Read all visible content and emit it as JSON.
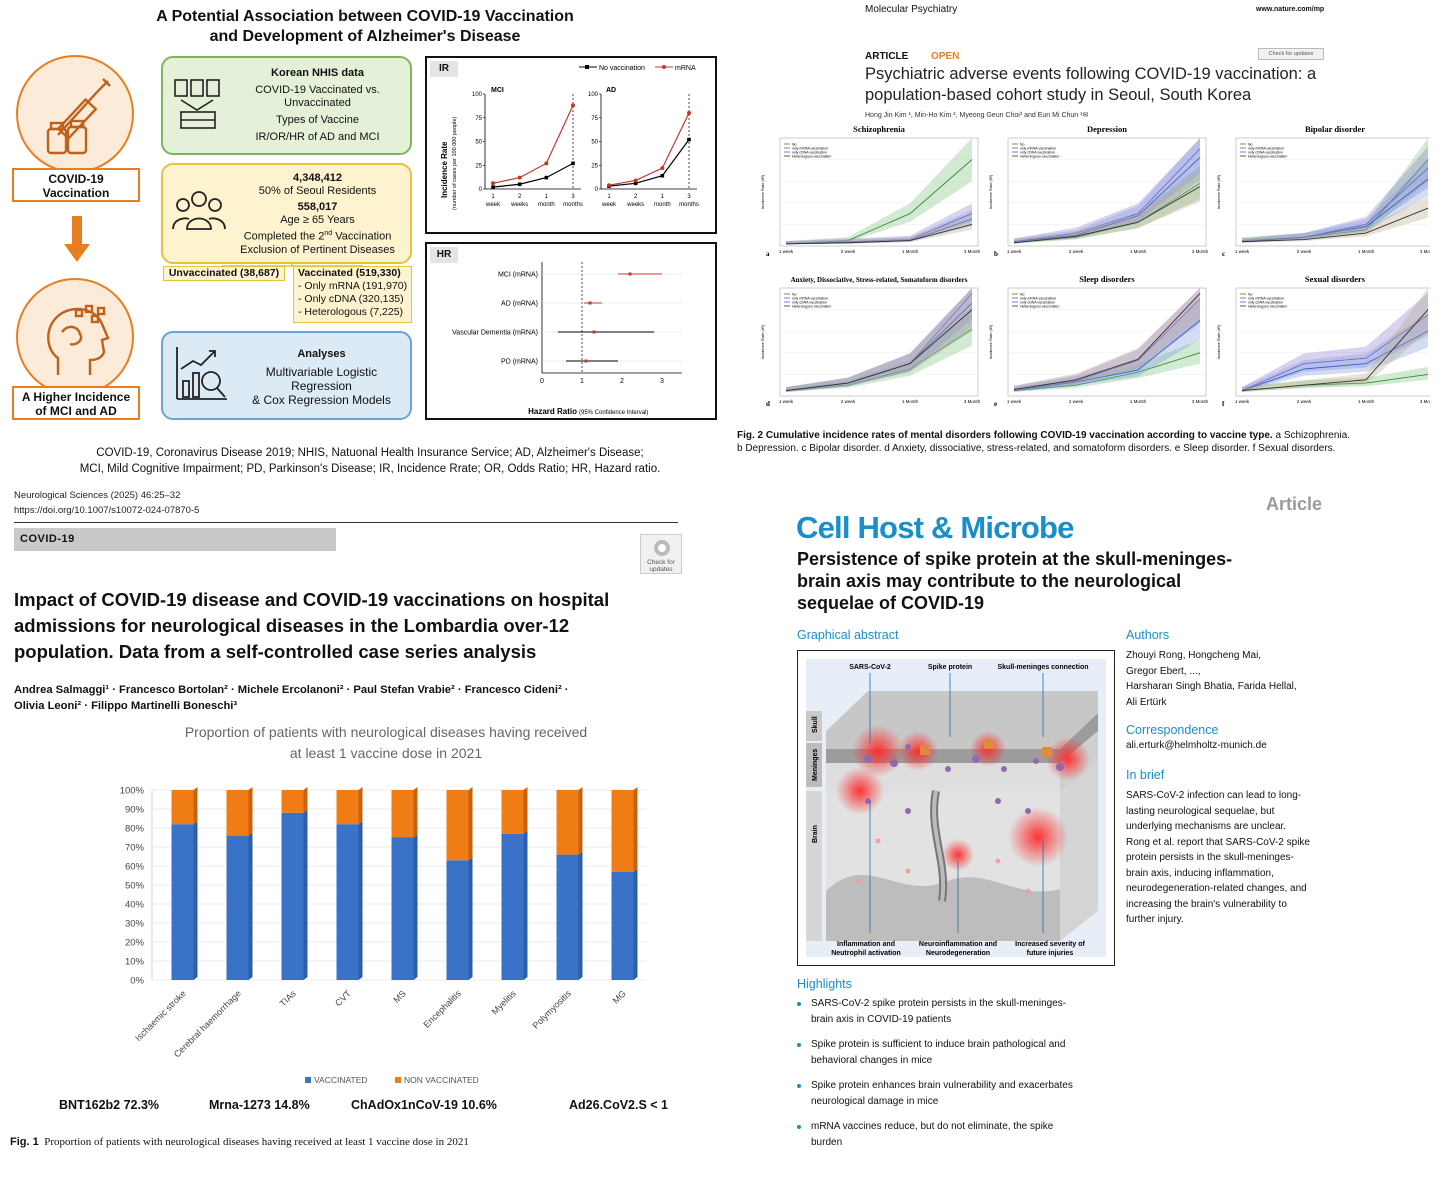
{
  "q1": {
    "title_line1": "A Potential Association between COVID-19 Vaccination",
    "title_line2": "and Development of Alzheimer's Disease",
    "vax_label_line1": "COVID-19",
    "vax_label_line2": "Vaccination",
    "outcome_line1": "A Higher Incidence",
    "outcome_line2": "of MCI and AD",
    "green_box": {
      "title": "Korean NHIS data",
      "l1": "COVID-19 Vaccinated vs.",
      "l2": "Unvaccinated",
      "l3": "Types of Vaccine",
      "l4": "IR/OR/HR of AD and MCI"
    },
    "yellow_box": {
      "n1": "4,348,412",
      "n1_sub": "50% of Seoul Residents",
      "n2": "558,017",
      "n2_sub": "Age ≥ 65 Years",
      "n2_sub2_pre": "Completed the 2",
      "n2_sub2_sup": "nd",
      "n2_sub2_post": " Vaccination",
      "n2_sub3": "Exclusion of Pertinent Diseases"
    },
    "unvaccinated": "Unvaccinated (38,687)",
    "vaccinated": {
      "title": "Vaccinated (519,330)",
      "l1": "- Only mRNA (191,970)",
      "l2": "- Only cDNA (320,135)",
      "l3": "- Heterologous (7,225)"
    },
    "blue_box": {
      "title": "Analyses",
      "l1": "Multivariable Logistic",
      "l2": "Regression",
      "l3": "& Cox Regression Models"
    },
    "ir_panel": {
      "tag": "IR",
      "legend_a": "No vaccination",
      "legend_b": "mRNA",
      "ylabel1": "Incidence Rate",
      "ylabel2": "(number of cases per 100 000 people)",
      "mci": "MCI",
      "ad": "AD",
      "yticks": [
        "0",
        "25",
        "50",
        "75",
        "100"
      ],
      "xticks_top": [
        "1",
        "2",
        "1",
        "3"
      ],
      "xticks_bot": [
        "week",
        "weeks",
        "month",
        "months"
      ]
    },
    "hr_panel": {
      "tag": "HR",
      "rows": [
        "MCI (mRNA)",
        "AD (mRNA)",
        "Vascular Dementia (mRNA)",
        "PD (mRNA)"
      ],
      "xticks": [
        "0",
        "1",
        "2",
        "3"
      ],
      "xlabel": "Hazard Ratio",
      "xlabel_sub": "(95% Confidence Interval)"
    },
    "footnote1": "COVID-19, Coronavirus Disease 2019; NHIS, Natuonal Health Insurance Service; AD, Alzheimer's Disease;",
    "footnote2": "MCI, Mild Cognitive Impairment; PD, Parkinson's Disease; IR, Incidence Rrate; OR, Odds Ratio; HR, Hazard ratio."
  },
  "q2": {
    "journal": "Molecular Psychiatry",
    "url": "www.nature.com/mp",
    "article": "ARTICLE",
    "open": "OPEN",
    "check": "Check for updates",
    "title1": "Psychiatric adverse events following COVID-19 vaccination: a",
    "title2": "population-based cohort study in Seoul, South Korea",
    "authors": "Hong Jin Kim ¹, Min-Ho Kim ², Myeong Geun Choi³ and Eun Mi Chun ¹✉",
    "panels": [
      {
        "title": "Schizophrenia",
        "letter": "a"
      },
      {
        "title": "Depression",
        "letter": "b"
      },
      {
        "title": "Bipolar disorder",
        "letter": "c"
      },
      {
        "title": "Anxiety, Dissociative, Stress-related, Somatoform disorders",
        "letter": "d"
      },
      {
        "title": "Sleep disorders",
        "letter": "e"
      },
      {
        "title": "Sexual disorders",
        "letter": "f"
      }
    ],
    "xticks": [
      "1 week",
      "2 week",
      "1 Month",
      "3 Month"
    ],
    "ylabel": "Incidence Rate (IR)",
    "legend": [
      "No",
      "only mRNA vaccination",
      "only cDNA vaccination",
      "Heterologous vaccination"
    ],
    "caption_bold": "Fig. 2   Cumulative incidence rates of mental disorders following COVID-19 vaccination according to vaccine type.",
    "caption_rest1": " a Schizophrenia.",
    "caption_line2": "b Depression. c Bipolar disorder. d Anxiety, dissociative, stress-related, and somatoform disorders. e Sleep disorder. f Sexual disorders."
  },
  "q3": {
    "citation": "Neurological Sciences (2025) 46:25–32",
    "doi": "https://doi.org/10.1007/s10072-024-07870-5",
    "section": "COVID-19",
    "check1": "Check for",
    "check2": "updates",
    "title1": "Impact of COVID-19 disease and COVID-19 vaccinations on hospital",
    "title2": "admissions for neurological diseases in the Lombardia over-12",
    "title3": "population. Data from a self-controlled case series analysis",
    "authors1": "Andrea Salmaggi¹ · Francesco Bortolan² · Michele Ercolanoni² · Paul Stefan Vrabie² · Francesco Cideni² ·",
    "authors2": "Olivia Leoni² · Filippo Martinelli Boneschi³",
    "vaccine_stats": [
      {
        "name": "BNT162b2",
        "value": "72.3%"
      },
      {
        "name": "Mrna-1273",
        "value": "14.8%"
      },
      {
        "name": "ChAdOx1nCoV-19",
        "value": "10.6%"
      },
      {
        "name": "Ad26.CoV2.S",
        "value": "< 1"
      }
    ],
    "fig_label": "Fig. 1",
    "fig_caption": "Proportion of patients with neurological diseases having received at least 1 vaccine dose in 2021"
  },
  "q4": {
    "article_tag": "Article",
    "journal": "Cell Host & Microbe",
    "title1": "Persistence of spike protein at the skull-meninges-",
    "title2": "brain axis may contribute to the neurological",
    "title3": "sequelae of COVID-19",
    "ga_head": "Graphical abstract",
    "ga_labels": {
      "sars": "SARS-CoV-2",
      "spike": "Spike protein",
      "skull_conn": "Skull-meninges connection",
      "skull": "Skull",
      "meninges": "Meninges",
      "brain": "Brain",
      "b1a": "Inflammation and",
      "b1b": "Neutrophil activation",
      "b2a": "Neuroinflammation and",
      "b2b": "Neurodegeneration",
      "b3a": "Increased severity of",
      "b3b": "future injuries"
    },
    "authors_head": "Authors",
    "authors": [
      "Zhouyi Rong, Hongcheng Mai,",
      "Gregor Ebert, ...,",
      "Harsharan Singh Bhatia, Farida Hellal,",
      "Ali Ertürk"
    ],
    "corr_head": "Correspondence",
    "corr": "ali.erturk@helmholtz-munich.de",
    "brief_head": "In brief",
    "brief": [
      "SARS-CoV-2 infection can lead to long-",
      "lasting neurological sequelae, but",
      "underlying mechanisms are unclear.",
      "Rong et al. report that SARS-CoV-2 spike",
      "protein persists in the skull-meninges-",
      "brain axis, inducing inflammation,",
      "neurodegeneration-related changes, and",
      "increasing the brain's vulnerability to",
      "further injury."
    ],
    "highlights_head": "Highlights",
    "highlights": [
      [
        "SARS-CoV-2 spike protein persists in the skull-meninges-",
        "brain axis in COVID-19 patients"
      ],
      [
        "Spike protein is sufficient to induce brain pathological and",
        "behavioral changes in mice"
      ],
      [
        "Spike protein enhances brain vulnerability and exacerbates",
        "neurological damage in mice"
      ],
      [
        "mRNA vaccines reduce, but do not eliminate, the spike",
        "burden"
      ]
    ]
  },
  "chart_data": [
    {
      "type": "bar",
      "title": "Proportion of patients with neurological diseases having received at least 1 vaccine dose in 2021",
      "title_line1": "Proportion of patients with neurological diseases having received",
      "title_line2": "at least 1 vaccine dose in 2021",
      "categories": [
        "Ischaemic stroke",
        "Cerebral haemorrhage",
        "TIAs",
        "CVT",
        "MS",
        "Encephalitis",
        "Myelitis",
        "Polymyositis",
        "MG"
      ],
      "series": [
        {
          "name": "VACCINATED",
          "values": [
            82,
            76,
            88,
            82,
            75,
            63,
            77,
            66,
            57
          ],
          "color": "#3a72c8"
        },
        {
          "name": "NON VACCINATED",
          "values": [
            18,
            24,
            12,
            18,
            25,
            37,
            23,
            34,
            43
          ],
          "color": "#f07c15"
        }
      ],
      "yticks": [
        "0%",
        "10%",
        "20%",
        "30%",
        "40%",
        "50%",
        "60%",
        "70%",
        "80%",
        "90%",
        "100%"
      ],
      "ylim": [
        0,
        100
      ],
      "stacked": true,
      "legend": "bottom"
    },
    {
      "type": "line",
      "panel": "MCI",
      "x": [
        "1 week",
        "2 weeks",
        "1 month",
        "3 months"
      ],
      "series": [
        {
          "name": "No vaccination",
          "values": [
            2,
            5,
            12,
            27
          ],
          "color": "#000"
        },
        {
          "name": "mRNA",
          "values": [
            6,
            12,
            27,
            88
          ],
          "color": "#c0392b"
        }
      ],
      "ylim": [
        0,
        100
      ]
    },
    {
      "type": "line",
      "panel": "AD",
      "x": [
        "1 week",
        "2 weeks",
        "1 month",
        "3 months"
      ],
      "series": [
        {
          "name": "No vaccination",
          "values": [
            3,
            6,
            14,
            52
          ],
          "color": "#000"
        },
        {
          "name": "mRNA",
          "values": [
            4,
            9,
            22,
            80
          ],
          "color": "#c0392b"
        }
      ],
      "ylim": [
        0,
        100
      ]
    },
    {
      "type": "scatter",
      "panel": "HR forest plot",
      "categories": [
        "MCI (mRNA)",
        "AD (mRNA)",
        "Vascular Dementia (mRNA)",
        "PD (mRNA)"
      ],
      "estimate": [
        2.2,
        1.2,
        1.3,
        1.1
      ],
      "ci_low": [
        1.9,
        1.05,
        0.4,
        0.6
      ],
      "ci_high": [
        3.0,
        1.5,
        2.8,
        1.9
      ],
      "xlim": [
        0,
        3.5
      ]
    }
  ]
}
